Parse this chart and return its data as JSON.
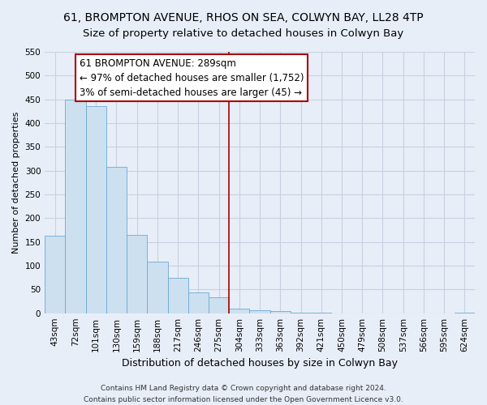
{
  "title": "61, BROMPTON AVENUE, RHOS ON SEA, COLWYN BAY, LL28 4TP",
  "subtitle": "Size of property relative to detached houses in Colwyn Bay",
  "xlabel": "Distribution of detached houses by size in Colwyn Bay",
  "ylabel": "Number of detached properties",
  "bar_labels": [
    "43sqm",
    "72sqm",
    "101sqm",
    "130sqm",
    "159sqm",
    "188sqm",
    "217sqm",
    "246sqm",
    "275sqm",
    "304sqm",
    "333sqm",
    "363sqm",
    "392sqm",
    "421sqm",
    "450sqm",
    "479sqm",
    "508sqm",
    "537sqm",
    "566sqm",
    "595sqm",
    "624sqm"
  ],
  "bar_values": [
    163,
    450,
    435,
    308,
    165,
    108,
    75,
    43,
    33,
    10,
    7,
    4,
    2,
    1,
    0,
    0,
    0,
    0,
    0,
    0,
    2
  ],
  "bar_color": "#cce0f0",
  "bar_edge_color": "#6aaad4",
  "vline_x": 8.5,
  "vline_color": "#aa0000",
  "annotation_line1": "61 BROMPTON AVENUE: 289sqm",
  "annotation_line2": "← 97% of detached houses are smaller (1,752)",
  "annotation_line3": "3% of semi-detached houses are larger (45) →",
  "annotation_box_color": "#ffffff",
  "annotation_box_edge_color": "#aa0000",
  "ylim": [
    0,
    550
  ],
  "yticks": [
    0,
    50,
    100,
    150,
    200,
    250,
    300,
    350,
    400,
    450,
    500,
    550
  ],
  "footer_line1": "Contains HM Land Registry data © Crown copyright and database right 2024.",
  "footer_line2": "Contains public sector information licensed under the Open Government Licence v3.0.",
  "title_fontsize": 10,
  "xlabel_fontsize": 9,
  "ylabel_fontsize": 8,
  "tick_fontsize": 7.5,
  "footer_fontsize": 6.5,
  "annotation_fontsize": 8.5,
  "bg_color": "#e8eef8",
  "plot_bg_color": "#e8eef8",
  "grid_color": "#c8d0e0"
}
